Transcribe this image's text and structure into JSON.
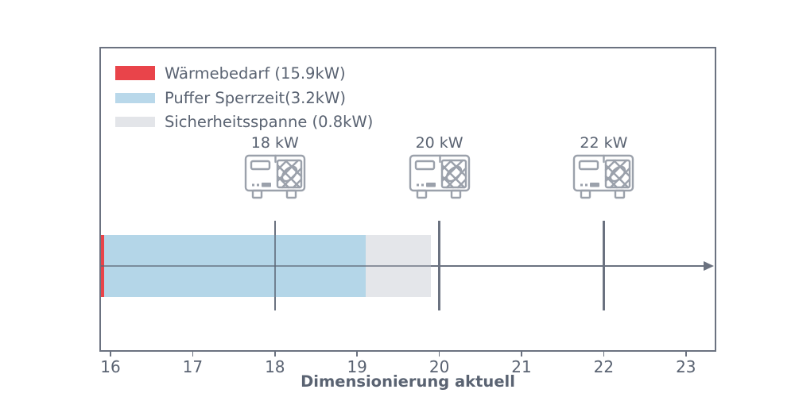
{
  "colors": {
    "frame": "#6b7280",
    "text": "#5a6372",
    "icon_stroke": "#9ba1ab",
    "red": "#e9444a",
    "blue": "#b4d6e8",
    "gray": "#e4e6ea"
  },
  "legend": {
    "items": [
      {
        "label": "Wärmebedarf (15.9kW)",
        "color": "#e9444a"
      },
      {
        "label": "Puffer Sperrzeit(3.2kW)",
        "color": "#b9d8ea"
      },
      {
        "label": "Sicherheitsspanne (0.8kW)",
        "color": "#e3e5e9"
      }
    ]
  },
  "chart_data": {
    "type": "bar",
    "orientation": "horizontal-stacked",
    "title": "",
    "xlabel": "Dimensionierung aktuell",
    "ylabel": "",
    "xlim": [
      15.88,
      23.38
    ],
    "xticks": [
      16,
      17,
      18,
      19,
      20,
      21,
      22,
      23
    ],
    "grid": false,
    "legend_position": "upper-left",
    "segments": [
      {
        "name": "Wärmebedarf",
        "kw": 15.9,
        "start": 0,
        "end": 15.9,
        "css": "#e9444a"
      },
      {
        "name": "Puffer Sperrzeit",
        "kw": 3.2,
        "start": 15.9,
        "end": 19.1,
        "css": "#b4d6e8"
      },
      {
        "name": "Sicherheitsspanne",
        "kw": 0.8,
        "start": 19.1,
        "end": 19.9,
        "css": "#e4e6ea"
      }
    ],
    "bar_total_kw": 19.9,
    "markers": [
      {
        "label": "18 kW",
        "value": 18,
        "line_weight": 2
      },
      {
        "label": "20 kW",
        "value": 20,
        "line_weight": 3
      },
      {
        "label": "22 kW",
        "value": 22,
        "line_weight": 3
      }
    ],
    "arrow": {
      "at_bar_center": true,
      "direction": "right"
    }
  }
}
